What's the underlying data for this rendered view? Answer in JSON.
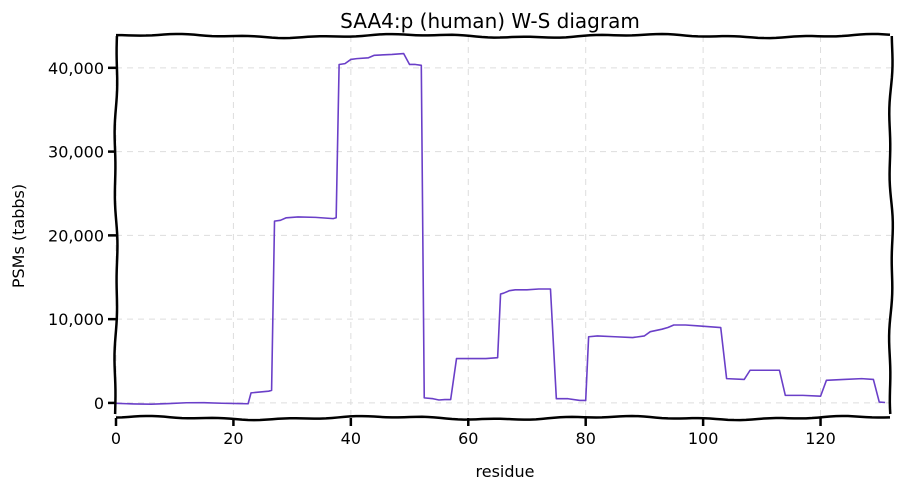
{
  "chart_data": {
    "type": "line",
    "title": "SAA4:p (human) W-S diagram",
    "xlabel": "residue",
    "ylabel": "PSMs (tabbs)",
    "xlim": [
      0,
      132
    ],
    "ylim": [
      -1800,
      43800
    ],
    "xticks": [
      0,
      20,
      40,
      60,
      80,
      100,
      120
    ],
    "yticks": [
      0,
      10000,
      20000,
      30000,
      40000
    ],
    "ytick_labels": [
      "0",
      "10,000",
      "20,000",
      "30,000",
      "40,000"
    ],
    "grid": true,
    "line_color": "#6a3fc8",
    "series": [
      {
        "values": [
          [
            0,
            -50
          ],
          [
            3,
            -120
          ],
          [
            6,
            -150
          ],
          [
            9,
            -80
          ],
          [
            12,
            20
          ],
          [
            15,
            30
          ],
          [
            18,
            -40
          ],
          [
            21,
            -80
          ],
          [
            22.5,
            -100
          ],
          [
            23,
            1200
          ],
          [
            26,
            1400
          ],
          [
            26.5,
            1500
          ],
          [
            27,
            21700
          ],
          [
            28,
            21800
          ],
          [
            29,
            22100
          ],
          [
            31,
            22200
          ],
          [
            34,
            22150
          ],
          [
            37,
            22000
          ],
          [
            37.5,
            22100
          ],
          [
            38,
            40400
          ],
          [
            39,
            40500
          ],
          [
            40,
            41000
          ],
          [
            41,
            41100
          ],
          [
            43,
            41200
          ],
          [
            44,
            41500
          ],
          [
            47,
            41600
          ],
          [
            49,
            41700
          ],
          [
            50,
            40400
          ],
          [
            51,
            40400
          ],
          [
            52,
            40300
          ],
          [
            52.5,
            600
          ],
          [
            54,
            500
          ],
          [
            55,
            350
          ],
          [
            56,
            400
          ],
          [
            57,
            400
          ],
          [
            58,
            5300
          ],
          [
            60,
            5300
          ],
          [
            63,
            5300
          ],
          [
            65,
            5400
          ],
          [
            65.5,
            13000
          ],
          [
            66,
            13100
          ],
          [
            67,
            13400
          ],
          [
            68,
            13500
          ],
          [
            70,
            13500
          ],
          [
            72,
            13600
          ],
          [
            74,
            13600
          ],
          [
            75,
            500
          ],
          [
            77,
            500
          ],
          [
            79,
            300
          ],
          [
            80,
            300
          ],
          [
            80.5,
            7900
          ],
          [
            82,
            8000
          ],
          [
            85,
            7900
          ],
          [
            88,
            7800
          ],
          [
            90,
            8000
          ],
          [
            91,
            8500
          ],
          [
            93,
            8800
          ],
          [
            94,
            9000
          ],
          [
            95,
            9300
          ],
          [
            97,
            9300
          ],
          [
            99,
            9200
          ],
          [
            101,
            9100
          ],
          [
            103,
            9000
          ],
          [
            104,
            2900
          ],
          [
            107,
            2800
          ],
          [
            108,
            3900
          ],
          [
            110,
            3900
          ],
          [
            113,
            3900
          ],
          [
            114,
            900
          ],
          [
            117,
            900
          ],
          [
            120,
            800
          ],
          [
            121,
            2700
          ],
          [
            124,
            2800
          ],
          [
            127,
            2900
          ],
          [
            129,
            2800
          ],
          [
            130,
            100
          ],
          [
            131,
            50
          ]
        ]
      }
    ]
  }
}
